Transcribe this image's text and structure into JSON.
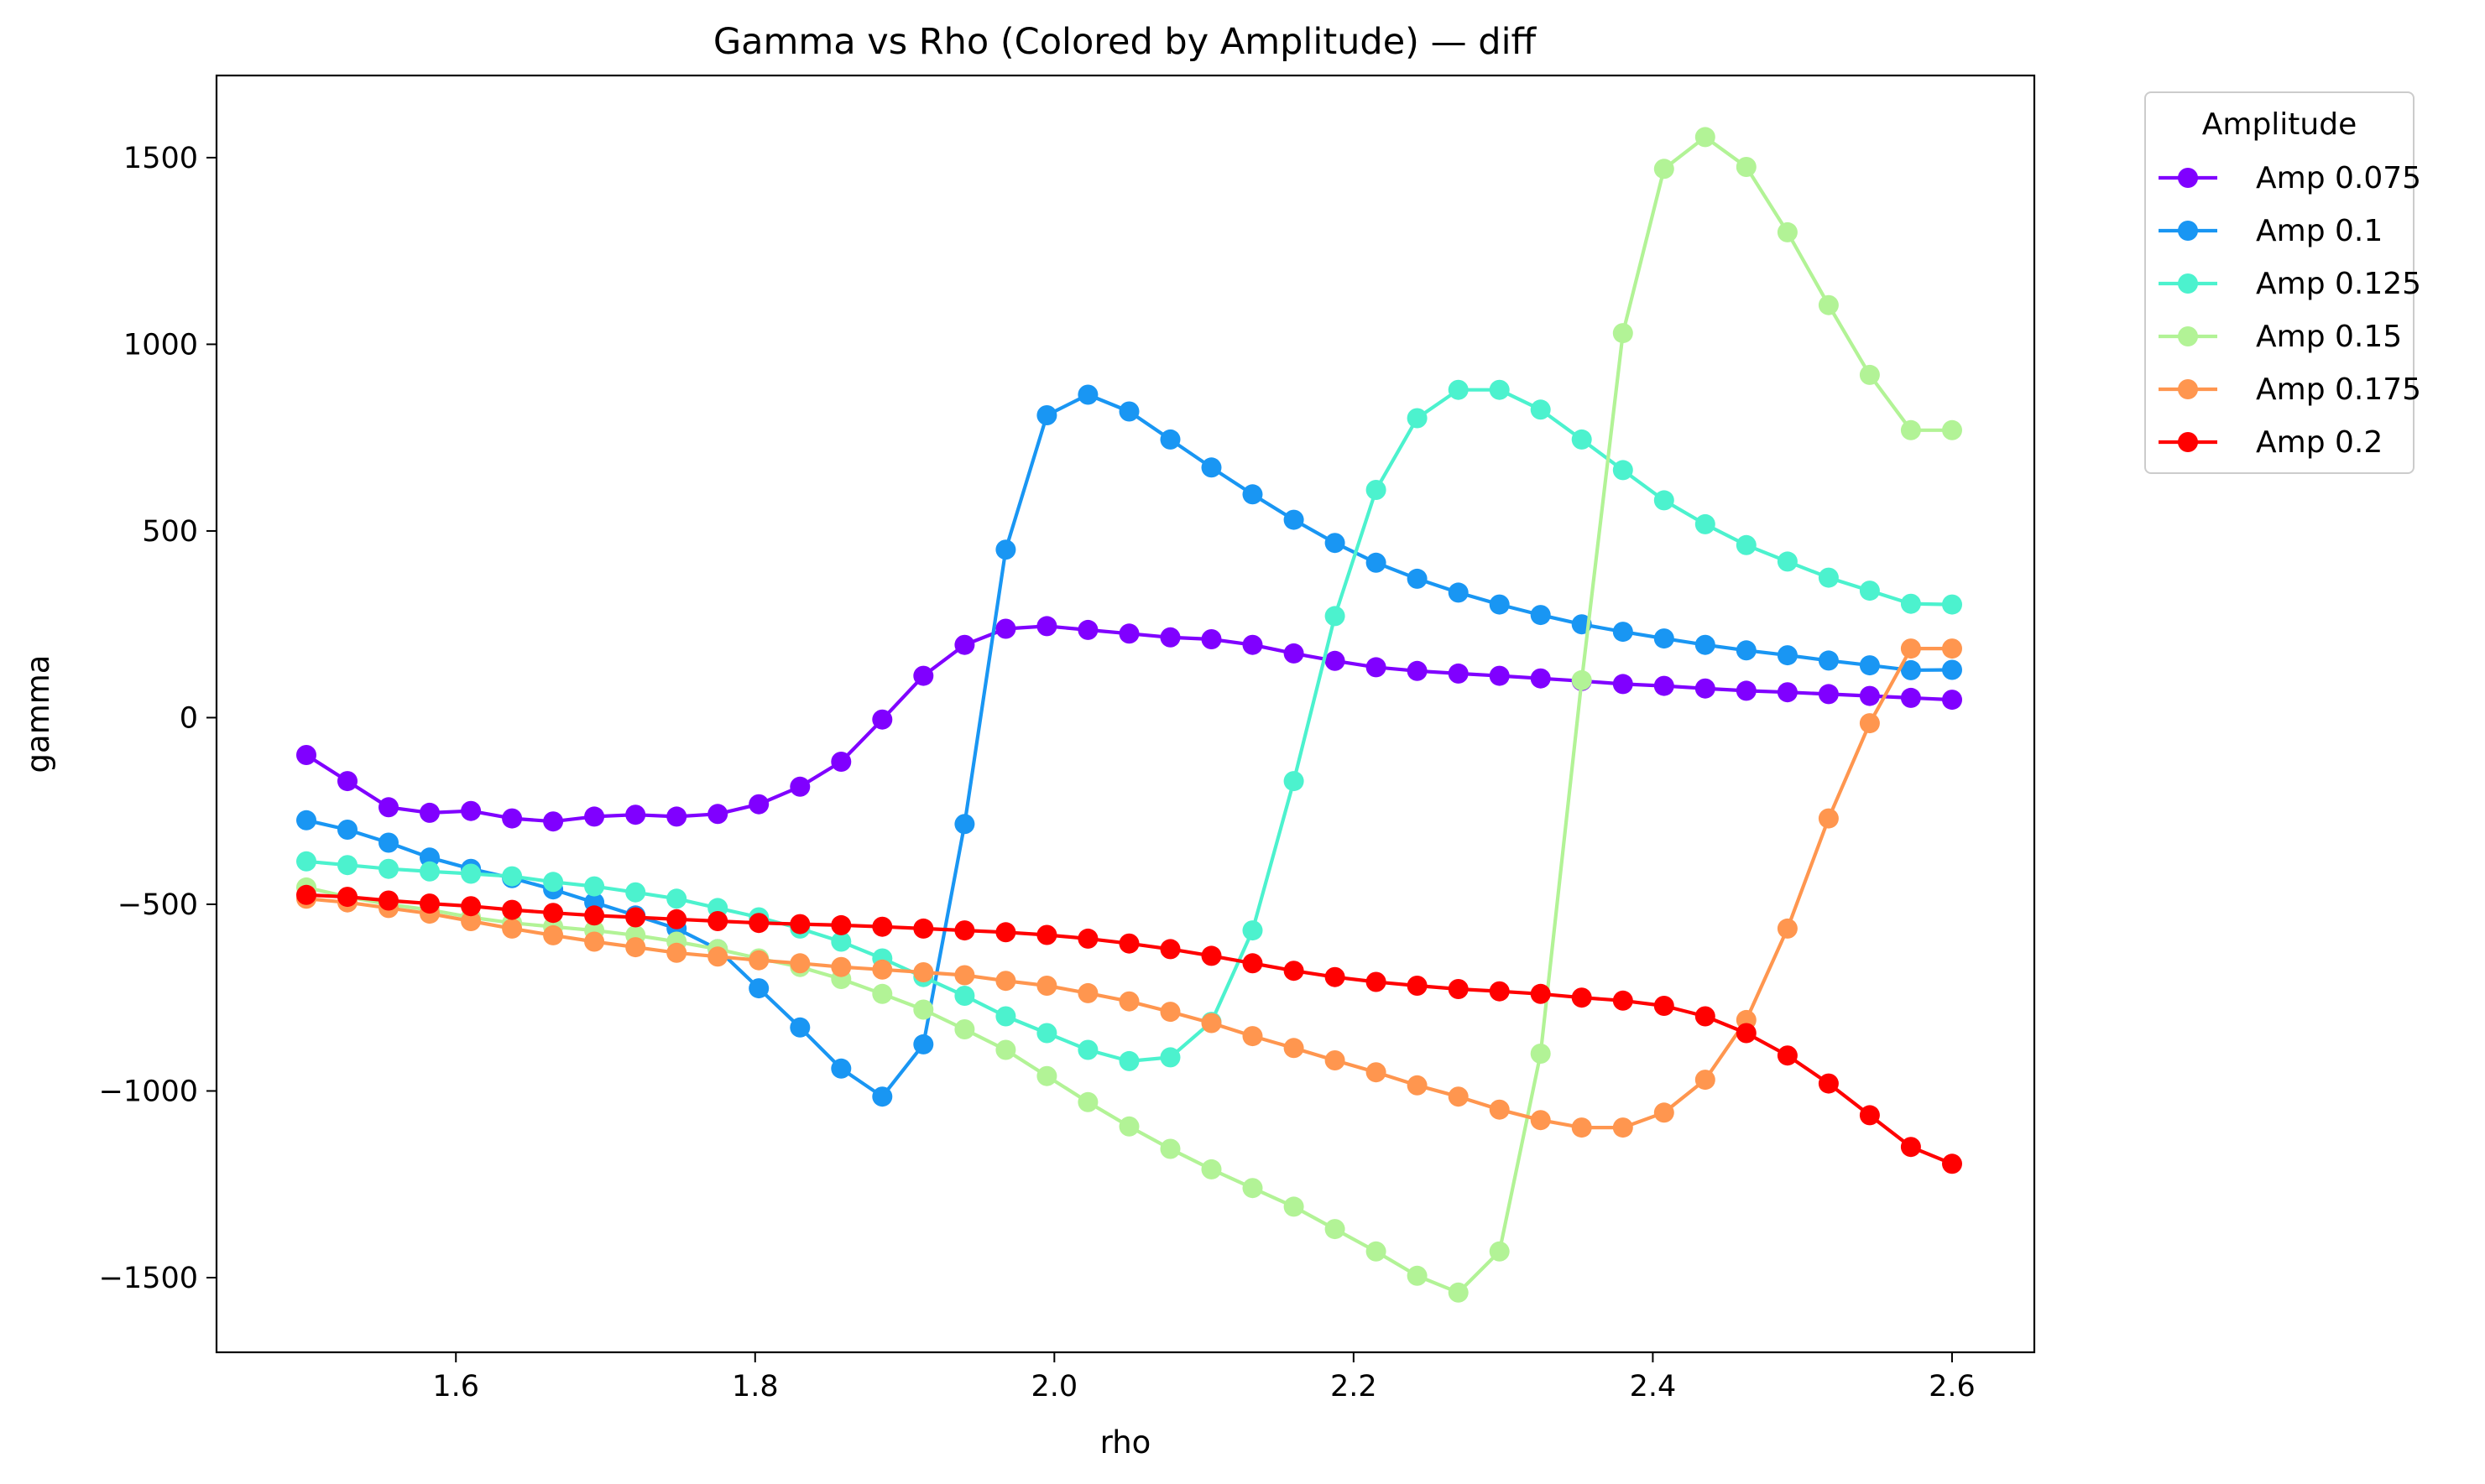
{
  "chart_data": {
    "type": "line",
    "title": "Gamma vs Rho (Colored by Amplitude) — diff",
    "xlabel": "rho",
    "ylabel": "gamma",
    "xlim": [
      1.44,
      2.655
    ],
    "ylim": [
      -1700,
      1720
    ],
    "xticks": [
      1.6,
      1.8,
      2.0,
      2.2,
      2.4,
      2.6
    ],
    "xtick_labels": [
      "1.6",
      "1.8",
      "2.0",
      "2.2",
      "2.4",
      "2.6"
    ],
    "yticks": [
      -1500,
      -1000,
      -500,
      0,
      500,
      1000,
      1500
    ],
    "ytick_labels": [
      "−1500",
      "−1000",
      "−500",
      "0",
      "500",
      "1000",
      "1500"
    ],
    "grid": false,
    "legend": {
      "title": "Amplitude",
      "placement": "outside-top-right"
    },
    "x": [
      1.5,
      1.5275,
      1.555,
      1.5825,
      1.61,
      1.6375,
      1.665,
      1.6925,
      1.72,
      1.7475,
      1.775,
      1.8025,
      1.83,
      1.8575,
      1.885,
      1.9125,
      1.94,
      1.9675,
      1.995,
      2.0225,
      2.05,
      2.0775,
      2.105,
      2.1325,
      2.16,
      2.1875,
      2.215,
      2.2425,
      2.27,
      2.2975,
      2.325,
      2.3525,
      2.38,
      2.4075,
      2.435,
      2.4625,
      2.49,
      2.5175,
      2.545,
      2.5725,
      2.6
    ],
    "series": [
      {
        "name": "Amp 0.075",
        "color": "#8000ff",
        "values": [
          -100,
          -170,
          -240,
          -255,
          -250,
          -270,
          -278,
          -265,
          -260,
          -265,
          -258,
          -232,
          -185,
          -118,
          -5,
          112,
          195,
          238,
          245,
          235,
          225,
          215,
          210,
          195,
          172,
          152,
          135,
          125,
          118,
          112,
          105,
          98,
          90,
          85,
          78,
          72,
          68,
          63,
          58,
          53,
          48
        ]
      },
      {
        "name": "Amp 0.1",
        "color": "#1996f3",
        "values": [
          -275,
          -300,
          -335,
          -375,
          -405,
          -430,
          -460,
          -495,
          -530,
          -565,
          -620,
          -725,
          -830,
          -940,
          -1015,
          -875,
          -285,
          450,
          810,
          865,
          820,
          745,
          670,
          598,
          530,
          468,
          415,
          372,
          335,
          303,
          275,
          250,
          230,
          212,
          195,
          180,
          167,
          153,
          140,
          127,
          128
        ]
      },
      {
        "name": "Amp 0.125",
        "color": "#4cf2ce",
        "values": [
          -385,
          -395,
          -405,
          -412,
          -418,
          -425,
          -440,
          -452,
          -468,
          -485,
          -510,
          -535,
          -565,
          -600,
          -645,
          -695,
          -745,
          -800,
          -845,
          -890,
          -920,
          -910,
          -815,
          -570,
          -170,
          272,
          610,
          802,
          878,
          878,
          825,
          745,
          663,
          582,
          518,
          462,
          418,
          375,
          340,
          305,
          303
        ]
      },
      {
        "name": "Amp 0.15",
        "color": "#b2f396",
        "values": [
          -455,
          -480,
          -500,
          -515,
          -535,
          -550,
          -560,
          -570,
          -583,
          -600,
          -620,
          -645,
          -668,
          -700,
          -740,
          -782,
          -835,
          -890,
          -960,
          -1030,
          -1095,
          -1155,
          -1210,
          -1260,
          -1310,
          -1370,
          -1430,
          -1495,
          -1540,
          -1430,
          -900,
          100,
          1030,
          1470,
          1555,
          1475,
          1300,
          1105,
          918,
          770,
          770
        ]
      },
      {
        "name": "Amp 0.175",
        "color": "#ff964f",
        "values": [
          -485,
          -495,
          -510,
          -525,
          -545,
          -565,
          -583,
          -600,
          -615,
          -630,
          -640,
          -650,
          -658,
          -668,
          -675,
          -682,
          -690,
          -705,
          -718,
          -738,
          -760,
          -788,
          -818,
          -853,
          -885,
          -918,
          -950,
          -985,
          -1015,
          -1050,
          -1078,
          -1098,
          -1098,
          -1058,
          -970,
          -810,
          -565,
          -270,
          -15,
          185,
          185
        ]
      },
      {
        "name": "Amp 0.2",
        "color": "#ff0000",
        "values": [
          -475,
          -480,
          -490,
          -498,
          -505,
          -515,
          -523,
          -530,
          -535,
          -540,
          -545,
          -550,
          -553,
          -556,
          -560,
          -565,
          -570,
          -575,
          -582,
          -592,
          -605,
          -620,
          -638,
          -658,
          -678,
          -695,
          -708,
          -718,
          -727,
          -733,
          -740,
          -750,
          -758,
          -772,
          -800,
          -845,
          -905,
          -980,
          -1065,
          -1150,
          -1195
        ]
      }
    ]
  }
}
